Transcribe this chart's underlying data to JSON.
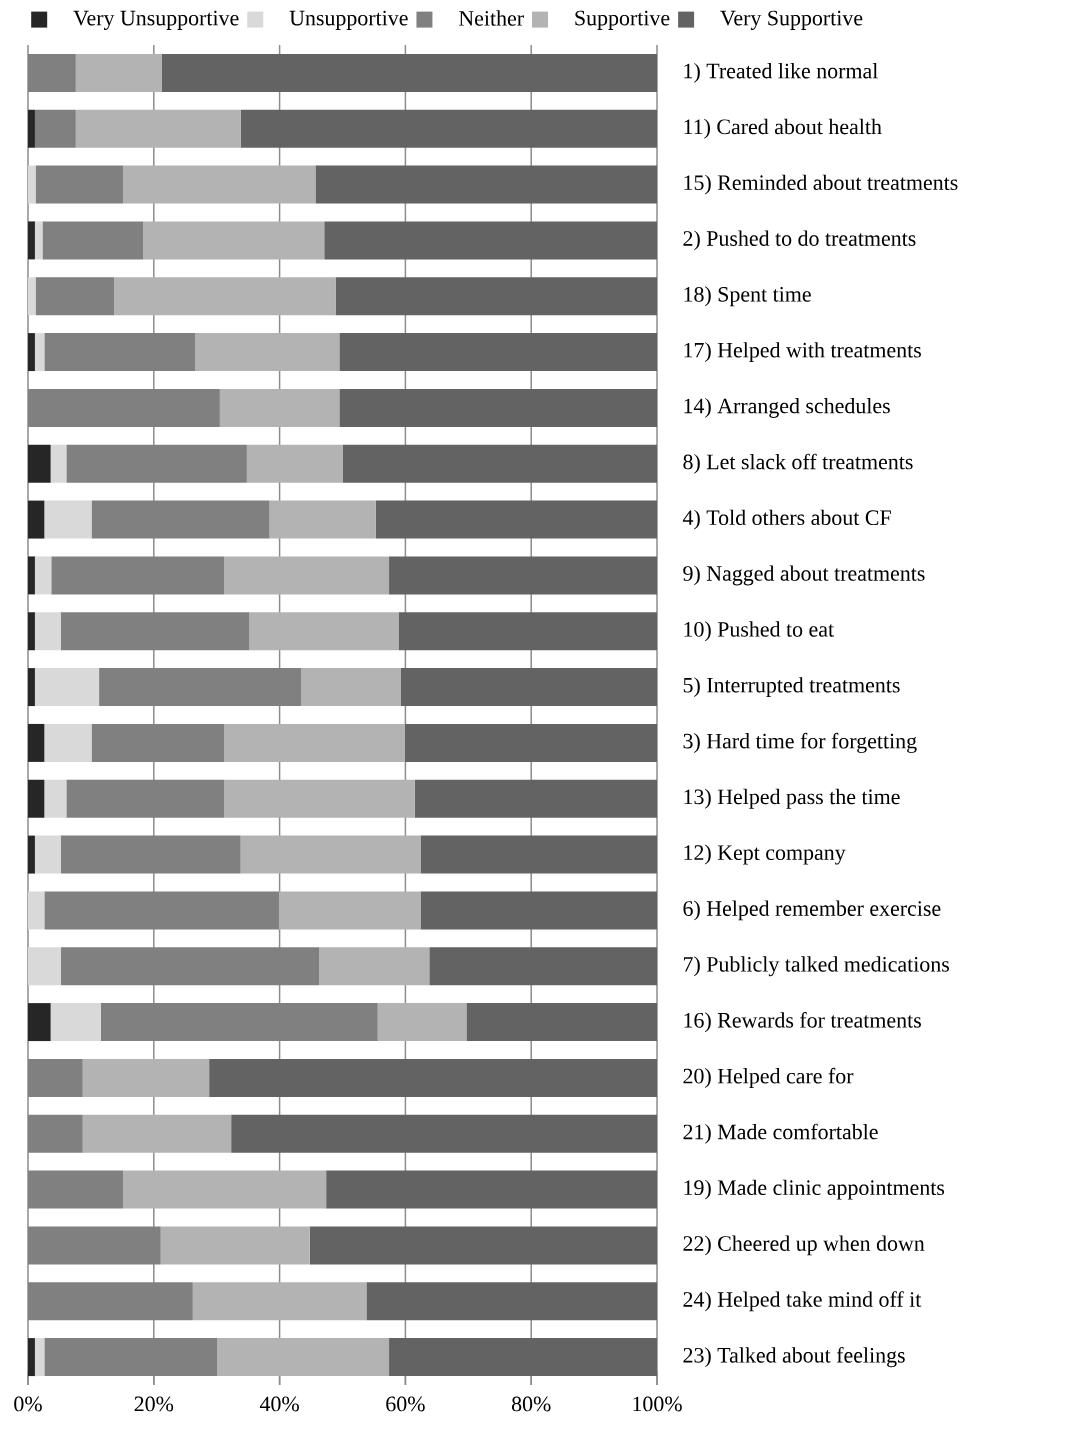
{
  "chart_data": {
    "type": "bar",
    "orientation": "horizontal",
    "stacked": true,
    "categories": [
      "1) Treated like normal",
      "11) Cared about health",
      "15) Reminded about treatments",
      "2) Pushed to do treatments",
      "18) Spent time",
      "17) Helped with treatments",
      "14) Arranged schedules",
      "8) Let slack off treatments",
      "4) Told others about CF",
      "9) Nagged about treatments",
      "10) Pushed to eat",
      "5) Interrupted treatments",
      "3) Hard time for forgetting",
      "13) Helped pass the time",
      "12) Kept company",
      "6) Helped remember exercise",
      "7) Publicly talked medications",
      "16) Rewards for treatments",
      "20) Helped care for",
      "21) Made comfortable",
      "19) Made clinic appointments",
      "22) Cheered up when down",
      "24) Helped take mind off it",
      "23) Talked about feelings"
    ],
    "series": [
      {
        "name": "Very Unsupportive",
        "color": "#262626",
        "values": [
          0,
          1.1,
          0,
          1.1,
          0,
          1.1,
          0,
          3.6,
          2.6,
          1.1,
          1.1,
          1.1,
          2.6,
          2.6,
          1.1,
          0,
          0,
          3.6,
          0,
          0,
          0,
          0,
          0,
          1.1
        ]
      },
      {
        "name": "Unsupportive",
        "color": "#d9d9d9",
        "values": [
          0,
          0,
          1.2,
          1.2,
          1.2,
          1.5,
          0,
          2.5,
          7.5,
          2.6,
          4.1,
          10.2,
          7.5,
          3.5,
          4.1,
          2.6,
          5.2,
          8.0,
          0,
          0,
          0,
          0,
          0,
          1.5
        ]
      },
      {
        "name": "Neither",
        "color": "#808080",
        "values": [
          7.6,
          6.5,
          13.9,
          16.0,
          12.5,
          24.0,
          30.5,
          28.7,
          28.3,
          27.5,
          30.0,
          32.1,
          21.1,
          25.1,
          28.6,
          37.3,
          41.1,
          44.0,
          8.7,
          8.7,
          15.1,
          21.1,
          26.2,
          27.5
        ]
      },
      {
        "name": "Supportive",
        "color": "#b3b3b3",
        "values": [
          13.7,
          26.2,
          30.6,
          28.8,
          35.2,
          22.9,
          19.0,
          15.2,
          16.9,
          26.2,
          23.7,
          15.9,
          28.7,
          30.3,
          28.6,
          22.5,
          17.5,
          14.1,
          20.1,
          23.6,
          32.3,
          23.7,
          27.6,
          27.3
        ]
      },
      {
        "name": "Very Supportive",
        "color": "#636363",
        "values": [
          78.7,
          66.2,
          54.3,
          52.9,
          51.1,
          50.5,
          50.5,
          50.0,
          44.7,
          42.6,
          41.1,
          40.7,
          40.1,
          38.5,
          37.6,
          37.6,
          36.2,
          30.3,
          71.2,
          67.7,
          52.6,
          55.2,
          46.2,
          42.6
        ]
      }
    ],
    "xlim": [
      0,
      100
    ],
    "xticks": [
      {
        "value": 0,
        "label": "0%"
      },
      {
        "value": 20,
        "label": "20%"
      },
      {
        "value": 40,
        "label": "40%"
      },
      {
        "value": 60,
        "label": "60%"
      },
      {
        "value": 80,
        "label": "80%"
      },
      {
        "value": 100,
        "label": "100%"
      }
    ],
    "grid": "x",
    "legend": "top"
  }
}
